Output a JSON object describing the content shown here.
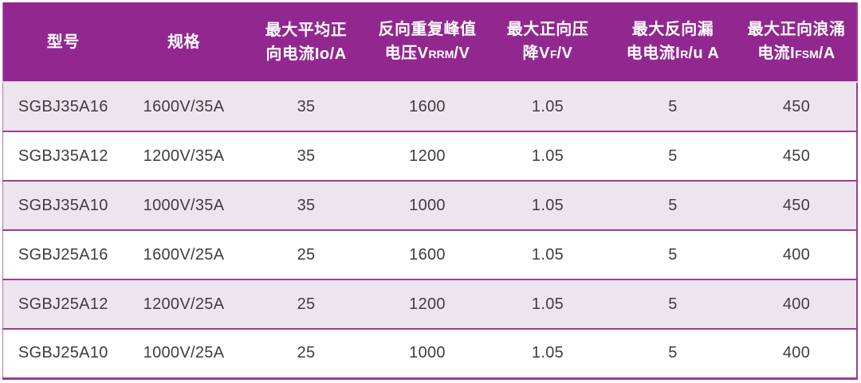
{
  "theme": {
    "accent": "#92278F",
    "separator": "#9C3C99",
    "separator_light": "#B277AF",
    "gap_line": "#E7DBE7",
    "alt_row": "#EDE5EE",
    "header_text": "#FFFFFF",
    "body_text": "#3E3E3E"
  },
  "table": {
    "columns": [
      {
        "id": "model",
        "lines": [
          [
            {
              "t": "型号"
            }
          ]
        ]
      },
      {
        "id": "spec",
        "lines": [
          [
            {
              "t": "规格"
            }
          ]
        ]
      },
      {
        "id": "max-avg-forward-current",
        "lines": [
          [
            {
              "t": "最大平均正"
            }
          ],
          [
            {
              "t": "向电流Io/A"
            }
          ]
        ]
      },
      {
        "id": "reverse-repetitive-peak-voltage",
        "lines": [
          [
            {
              "t": "反向重复峰值"
            }
          ],
          [
            {
              "t": "电压V"
            },
            {
              "t": "RRM",
              "small": true
            },
            {
              "t": "/V"
            }
          ]
        ]
      },
      {
        "id": "max-forward-voltage-drop",
        "lines": [
          [
            {
              "t": "最大正向压"
            }
          ],
          [
            {
              "t": "降V"
            },
            {
              "t": "F",
              "small": true
            },
            {
              "t": "/V"
            }
          ]
        ]
      },
      {
        "id": "max-reverse-leakage-current",
        "lines": [
          [
            {
              "t": "最大反向漏"
            }
          ],
          [
            {
              "t": "电电流I"
            },
            {
              "t": "R",
              "small": true
            },
            {
              "t": "/u A"
            }
          ]
        ]
      },
      {
        "id": "max-forward-surge-current",
        "lines": [
          [
            {
              "t": "最大正向浪涌"
            }
          ],
          [
            {
              "t": "电流I"
            },
            {
              "t": "FSM",
              "small": true
            },
            {
              "t": "/A"
            }
          ]
        ]
      }
    ],
    "rows": [
      [
        "SGBJ35A16",
        "1600V/35A",
        "35",
        "1600",
        "1.05",
        "5",
        "450"
      ],
      [
        "SGBJ35A12",
        "1200V/35A",
        "35",
        "1200",
        "1.05",
        "5",
        "450"
      ],
      [
        "SGBJ35A10",
        "1000V/35A",
        "35",
        "1000",
        "1.05",
        "5",
        "450"
      ],
      [
        "SGBJ25A16",
        "1600V/25A",
        "25",
        "1600",
        "1.05",
        "5",
        "400"
      ],
      [
        "SGBJ25A12",
        "1200V/25A",
        "25",
        "1200",
        "1.05",
        "5",
        "400"
      ],
      [
        "SGBJ25A10",
        "1000V/25A",
        "25",
        "1000",
        "1.05",
        "5",
        "400"
      ]
    ]
  }
}
